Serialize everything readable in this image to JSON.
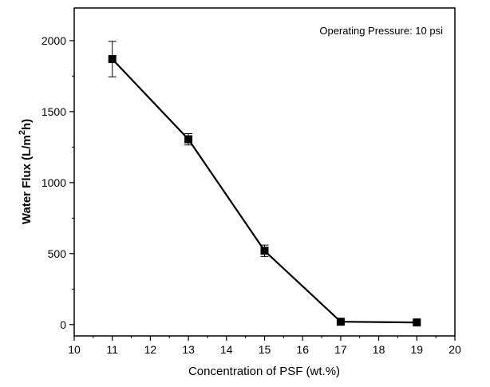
{
  "chart_data": {
    "type": "line",
    "title": "",
    "xlabel": "Concentration of PSF (wt.%)",
    "ylabel": "Water Flux (L/m",
    "ylabel_sup": "2",
    "ylabel_end": "h)",
    "annotation": "Operating Pressure: 10 psi",
    "xlim": [
      10,
      20
    ],
    "ylim": [
      -80,
      2230
    ],
    "x_ticks": [
      10,
      11,
      12,
      13,
      14,
      15,
      16,
      17,
      18,
      19,
      20
    ],
    "y_ticks": [
      0,
      500,
      1000,
      1500,
      2000
    ],
    "grid": false,
    "series": [
      {
        "x": [
          11,
          13,
          15,
          17,
          19
        ],
        "y": [
          1870,
          1305,
          520,
          20,
          15
        ],
        "error": [
          125,
          40,
          40,
          10,
          10
        ]
      }
    ]
  }
}
